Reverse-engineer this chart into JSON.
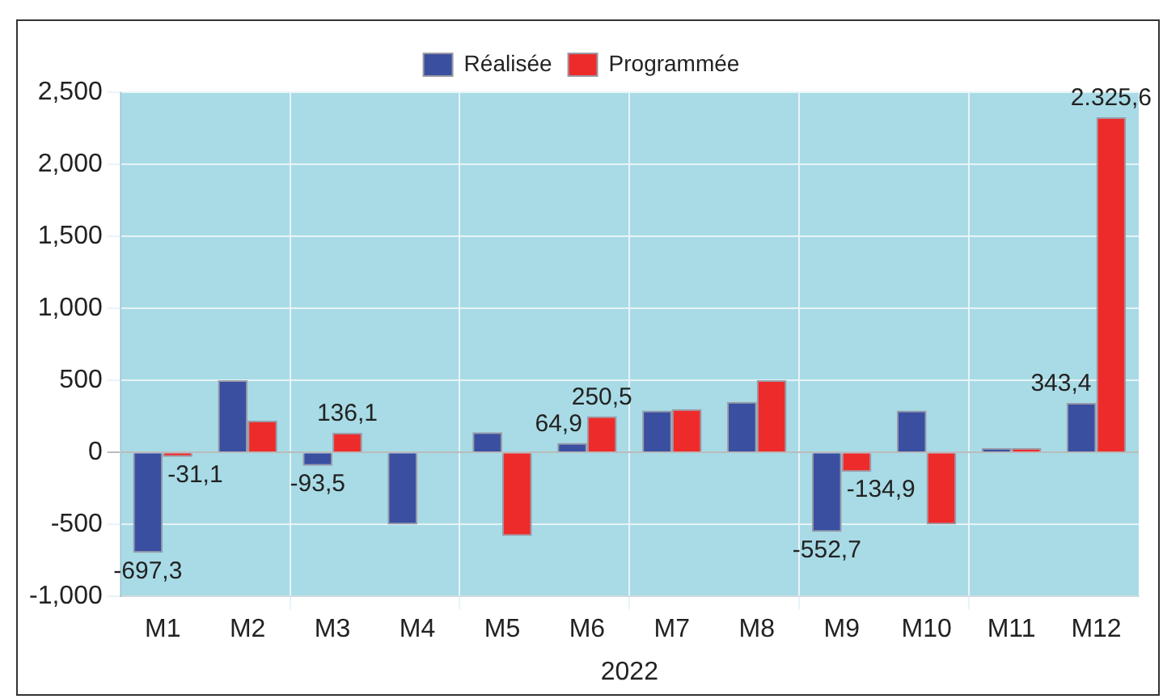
{
  "chart_data": {
    "type": "bar",
    "xlabel": "2022",
    "categories": [
      "M1",
      "M2",
      "M3",
      "M4",
      "M5",
      "M6",
      "M7",
      "M8",
      "M9",
      "M10",
      "M11",
      "M12"
    ],
    "series": [
      {
        "name": "Réalisée",
        "color": "#3a4fa0",
        "values": [
          -697.3,
          500,
          -93.5,
          -500,
          140,
          64.9,
          290,
          350,
          -552.7,
          290,
          30,
          343.4
        ],
        "value_labels": [
          "-697,3",
          null,
          "-93,5",
          null,
          null,
          "64,9",
          null,
          null,
          "-552,7",
          null,
          null,
          "343,4"
        ]
      },
      {
        "name": "Programmée",
        "color": "#ee2b2b",
        "values": [
          -31.1,
          220,
          136.1,
          null,
          -580,
          250.5,
          300,
          500,
          -134.9,
          -500,
          30,
          2325.6
        ],
        "value_labels": [
          "-31,1",
          null,
          "136,1",
          null,
          null,
          "250,5",
          null,
          null,
          "-134,9",
          null,
          null,
          "2.325,6"
        ]
      }
    ],
    "ylim": [
      -1000,
      2500
    ],
    "yticks": [
      {
        "value": -1000,
        "label": "-1,000"
      },
      {
        "value": -500,
        "label": "-500"
      },
      {
        "value": 0,
        "label": "0"
      },
      {
        "value": 500,
        "label": "500"
      },
      {
        "value": 1000,
        "label": "1,000"
      },
      {
        "value": 1500,
        "label": "1,500"
      },
      {
        "value": 2000,
        "label": "2,000"
      },
      {
        "value": 2500,
        "label": "2,500"
      }
    ],
    "grid": true,
    "legend": "top"
  }
}
